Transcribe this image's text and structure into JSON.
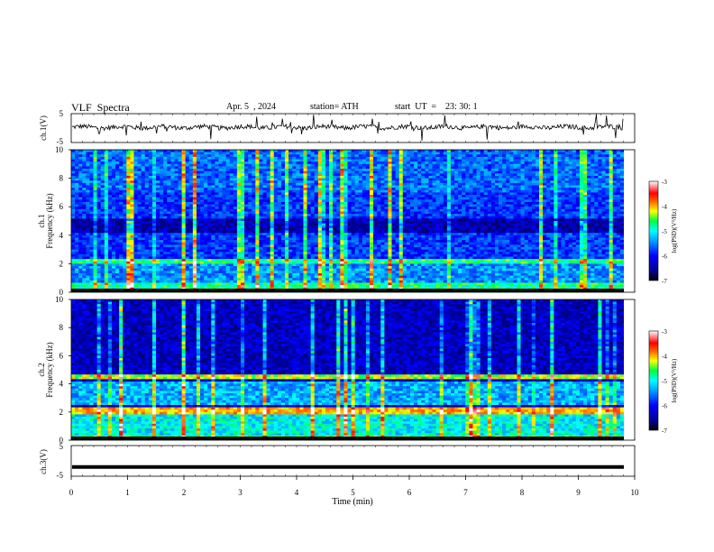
{
  "header": {
    "title": "VLF  Spectra",
    "date": "Apr. 5  , 2024",
    "station": "station= ATH",
    "start": "start  UT  =    23: 30: 1"
  },
  "chart_data": [
    {
      "type": "line",
      "name": "ch1-waveform",
      "ylabel": "ch.1(V)",
      "xlim": [
        0,
        10
      ],
      "ylim": [
        -5,
        5
      ],
      "yticks": [
        "5",
        "-5"
      ],
      "description_level": 0.3
    },
    {
      "type": "heatmap",
      "name": "ch1-spectrogram",
      "ylabel": "ch.1\nFrequency  (kHz)",
      "ylabel_lines": [
        "ch.1",
        "Frequency  (kHz)"
      ],
      "xlim": [
        0,
        10
      ],
      "ylim": [
        0,
        10
      ],
      "yticks": [
        "0",
        "2",
        "4",
        "6",
        "8",
        "10"
      ],
      "colorbar": {
        "label": "log(PSD)(V²/Hz)",
        "range": [
          -7,
          -3
        ],
        "ticks": [
          "-3",
          "-4",
          "-5",
          "-6",
          "-7"
        ]
      }
    },
    {
      "type": "heatmap",
      "name": "ch2-spectrogram",
      "ylabel_lines": [
        "ch.2",
        "Frequency  (kHz)"
      ],
      "xlim": [
        0,
        10
      ],
      "ylim": [
        0,
        10
      ],
      "yticks": [
        "0",
        "2",
        "4",
        "6",
        "8",
        "10"
      ],
      "colorbar": {
        "label": "log(PSD)(V²/Hz)",
        "range": [
          -7,
          -3
        ],
        "ticks": [
          "-3",
          "-4",
          "-5",
          "-6",
          "-7"
        ]
      }
    },
    {
      "type": "line",
      "name": "ch3-waveform",
      "ylabel": "ch.3(V)",
      "xlim": [
        0,
        10
      ],
      "ylim": [
        -5,
        5
      ],
      "yticks": [
        "5",
        "-5"
      ],
      "level": -2
    }
  ],
  "xaxis": {
    "label": "Time  (min)",
    "ticks": [
      "0",
      "1",
      "2",
      "3",
      "4",
      "5",
      "6",
      "7",
      "8",
      "9",
      "10"
    ]
  },
  "colors": {
    "jet": [
      "#000080",
      "#0000ff",
      "#0080ff",
      "#00ffff",
      "#80ff80",
      "#ffff00",
      "#ff8000",
      "#ff0000",
      "#ffffff"
    ]
  }
}
